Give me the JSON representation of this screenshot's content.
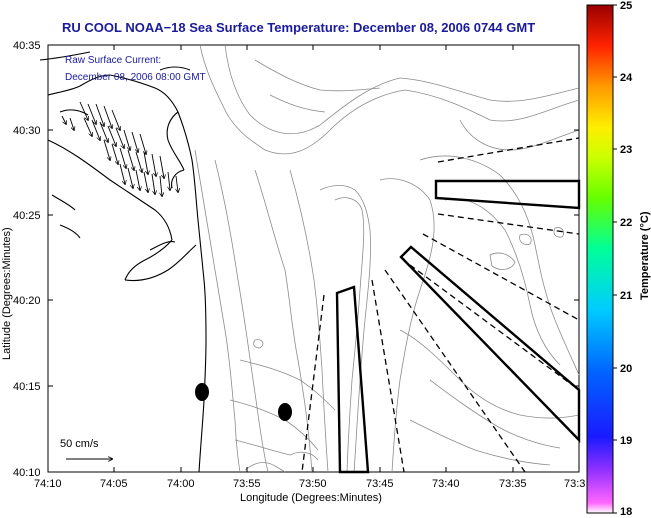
{
  "title": "RU COOL  NOAA−18  Sea Surface Temperature:  December 08, 2006 0744 GMT",
  "current_label_line1": "Raw Surface Current:",
  "current_label_line2": "December 08, 2006 08:00 GMT",
  "scale_label": "50 cm/s",
  "xlabel": "Longitude (Degrees:Minutes)",
  "ylabel": "Latitude (Degrees:Minutes)",
  "x_ticks": [
    "74:10",
    "74:05",
    "74:00",
    "73:55",
    "73:50",
    "73:45",
    "73:40",
    "73:35",
    "73:3"
  ],
  "y_ticks": [
    "40:35",
    "40:30",
    "40:25",
    "40:20",
    "40:15",
    "40:10"
  ],
  "colorbar": {
    "label": "Temperature (°C)",
    "ticks": [
      "25",
      "24",
      "23",
      "22",
      "21",
      "20",
      "19",
      "18"
    ],
    "range": [
      18,
      25
    ]
  },
  "colors": {
    "title": "#1a1a9c",
    "contour": "#888888",
    "coast": "#000000"
  }
}
